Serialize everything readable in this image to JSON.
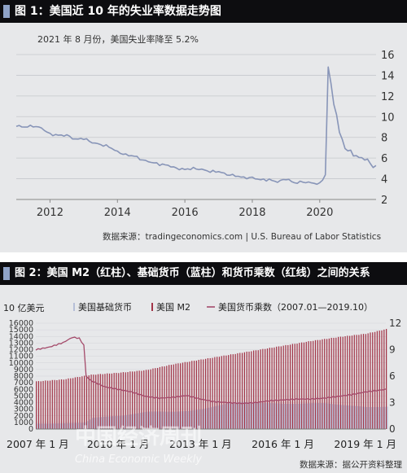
{
  "figure1": {
    "title": "图 1：美国近 10 年的失业率数据走势图",
    "subtitle": "2021 年 8 月份，美国失业率降至 5.2%",
    "source": "数据来源：tradingeconomics.com | U.S. Bureau of Labor Statistics"
  },
  "figure2": {
    "title": "图 2：美国 M2（红柱）、基础货币（蓝柱）和货币乘数（红线）之间的关系",
    "unit": "10 亿美元",
    "source": "数据来源：据公开资料整理",
    "watermark_cn": "中国经济周刊",
    "watermark_en": "China Economic Weekly"
  },
  "colors": {
    "header_bg": "#0d0d10",
    "header_box": "#8fa3c8",
    "panel_bg": "#e7e8ea",
    "line1": "#8895b8",
    "m2_bar": "#a23447",
    "base_bar": "#b6bfd8",
    "multiplier_line": "#a44a6a"
  },
  "chart_data": [
    {
      "type": "line",
      "x_range": [
        2011.0,
        2021.67
      ],
      "ylim": [
        2,
        16
      ],
      "y_axis_side": "right",
      "x_ticks": [
        2012,
        2014,
        2016,
        2018,
        2020
      ],
      "x_tick_labels": [
        "2012",
        "2014",
        "2016",
        "2018",
        "2020"
      ],
      "y_ticks": [
        2,
        4,
        6,
        8,
        10,
        12,
        14,
        16
      ],
      "y_tick_labels": [
        "2",
        "4",
        "6",
        "8",
        "10",
        "12",
        "14",
        "16"
      ],
      "grid": "horizontal",
      "series": [
        {
          "x": [
            2011.0,
            2011.25,
            2011.5,
            2011.75,
            2012.0,
            2012.25,
            2012.5,
            2012.75,
            2013.0,
            2013.25,
            2013.5,
            2013.75,
            2014.0,
            2014.25,
            2014.5,
            2014.75,
            2015.0,
            2015.25,
            2015.5,
            2015.75,
            2016.0,
            2016.25,
            2016.5,
            2016.75,
            2017.0,
            2017.25,
            2017.5,
            2017.75,
            2018.0,
            2018.25,
            2018.5,
            2018.75,
            2019.0,
            2019.25,
            2019.5,
            2019.75,
            2020.0,
            2020.17,
            2020.25,
            2020.33,
            2020.42,
            2020.5,
            2020.58,
            2020.67,
            2020.75,
            2020.83,
            2020.92,
            2021.0,
            2021.08,
            2021.17,
            2021.25,
            2021.33,
            2021.42,
            2021.5,
            2021.58,
            2021.67
          ],
          "values": [
            9.1,
            9.0,
            9.1,
            8.9,
            8.3,
            8.2,
            8.2,
            7.8,
            7.9,
            7.5,
            7.3,
            7.1,
            6.6,
            6.3,
            6.2,
            5.8,
            5.6,
            5.4,
            5.3,
            5.0,
            4.9,
            5.0,
            4.9,
            4.7,
            4.7,
            4.4,
            4.3,
            4.1,
            4.1,
            3.9,
            3.9,
            3.7,
            4.0,
            3.6,
            3.7,
            3.6,
            3.5,
            4.4,
            14.8,
            13.3,
            11.1,
            10.2,
            8.4,
            7.9,
            6.9,
            6.7,
            6.7,
            6.3,
            6.2,
            6.0,
            6.1,
            5.8,
            5.9,
            5.4,
            5.2,
            5.2
          ]
        }
      ]
    },
    {
      "type": "bar",
      "x_range": [
        2007.0,
        2019.75
      ],
      "x_ticks": [
        2007.0,
        2010.0,
        2013.0,
        2016.0,
        2019.0
      ],
      "x_tick_labels": [
        "2007 年 1 月",
        "2010 年 1 月",
        "2013 年 1 月",
        "2016 年 1 月",
        "2019 年 1 月"
      ],
      "ylim": [
        0,
        16000
      ],
      "y_ticks": [
        0,
        1000,
        2000,
        3000,
        4000,
        5000,
        6000,
        7000,
        8000,
        9000,
        10000,
        11000,
        12000,
        13000,
        14000,
        15000,
        16000
      ],
      "y_tick_labels": [
        "0",
        "1000",
        "2000",
        "3000",
        "4000",
        "5000",
        "6000",
        "7000",
        "8000",
        "9000",
        "10000",
        "11000",
        "12000",
        "13000",
        "14000",
        "15000",
        "16000"
      ],
      "ylim_right": [
        0,
        12
      ],
      "y_ticks_right": [
        0,
        3,
        6,
        9,
        12
      ],
      "y_tick_labels_right": [
        "0",
        "3",
        "6",
        "9",
        "12"
      ],
      "legend_position": "top",
      "series": [
        {
          "name": "美国基础货币",
          "x": [
            2007.0,
            2008.0,
            2008.75,
            2009.0,
            2010.0,
            2011.0,
            2011.5,
            2012.0,
            2012.5,
            2013.0,
            2013.5,
            2014.0,
            2014.5,
            2015.0,
            2016.0,
            2017.0,
            2017.5,
            2018.0,
            2019.0,
            2019.75
          ],
          "values": [
            850,
            850,
            1000,
            1700,
            2000,
            2600,
            2650,
            2650,
            2700,
            3000,
            3500,
            3900,
            4100,
            4000,
            3800,
            3900,
            3900,
            3700,
            3300,
            3400
          ]
        },
        {
          "name": "美国 M2",
          "x": [
            2007.0,
            2008.0,
            2009.0,
            2010.0,
            2011.0,
            2012.0,
            2013.0,
            2014.0,
            2015.0,
            2016.0,
            2017.0,
            2018.0,
            2019.0,
            2019.75
          ],
          "values": [
            7200,
            7500,
            8200,
            8500,
            8900,
            9800,
            10500,
            11200,
            11900,
            12600,
            13300,
            13900,
            14400,
            15100
          ]
        },
        {
          "name": "美国货币乘数（2007.01—2019.10）",
          "axis": "right",
          "x": [
            2007.0,
            2007.5,
            2008.0,
            2008.33,
            2008.58,
            2008.75,
            2008.83,
            2009.0,
            2009.5,
            2010.0,
            2010.5,
            2011.0,
            2011.5,
            2012.0,
            2012.5,
            2013.0,
            2013.5,
            2014.0,
            2014.5,
            2015.0,
            2015.5,
            2016.0,
            2016.5,
            2017.0,
            2017.5,
            2018.0,
            2018.5,
            2019.0,
            2019.5,
            2019.75
          ],
          "values": [
            9.0,
            9.3,
            9.8,
            10.4,
            10.3,
            9.5,
            6.0,
            5.5,
            4.8,
            4.5,
            4.2,
            3.7,
            3.5,
            3.6,
            3.8,
            3.4,
            3.1,
            3.0,
            2.9,
            3.0,
            3.2,
            3.3,
            3.4,
            3.4,
            3.5,
            3.7,
            3.9,
            4.2,
            4.4,
            4.5
          ]
        }
      ]
    }
  ]
}
